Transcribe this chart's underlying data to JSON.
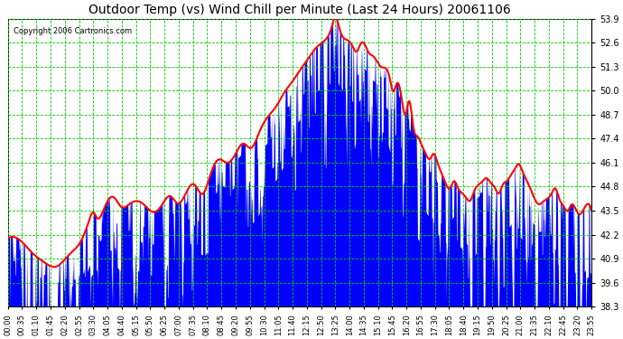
{
  "title": "Outdoor Temp (vs) Wind Chill per Minute (Last 24 Hours) 20061106",
  "copyright": "Copyright 2006 Cartronics.com",
  "background_color": "#ffffff",
  "plot_bg_color": "#ffffff",
  "grid_color": "#00cc00",
  "bar_color": "#0000ff",
  "line_color": "#ff0000",
  "ylim_min": 38.3,
  "ylim_max": 53.9,
  "yticks": [
    38.3,
    39.6,
    40.9,
    42.2,
    43.5,
    44.8,
    46.1,
    47.4,
    48.7,
    50.0,
    51.3,
    52.6,
    53.9
  ],
  "xtick_labels": [
    "00:00",
    "00:35",
    "01:10",
    "01:45",
    "02:20",
    "02:55",
    "03:30",
    "04:05",
    "04:40",
    "05:15",
    "05:50",
    "06:25",
    "07:00",
    "07:35",
    "08:10",
    "08:45",
    "09:20",
    "09:55",
    "10:30",
    "11:05",
    "11:40",
    "12:15",
    "12:50",
    "13:25",
    "14:00",
    "14:35",
    "15:10",
    "15:45",
    "16:20",
    "16:55",
    "17:30",
    "18:05",
    "18:40",
    "19:15",
    "19:50",
    "20:25",
    "21:00",
    "21:35",
    "22:10",
    "22:45",
    "23:20",
    "23:55"
  ],
  "n_minutes": 1440
}
